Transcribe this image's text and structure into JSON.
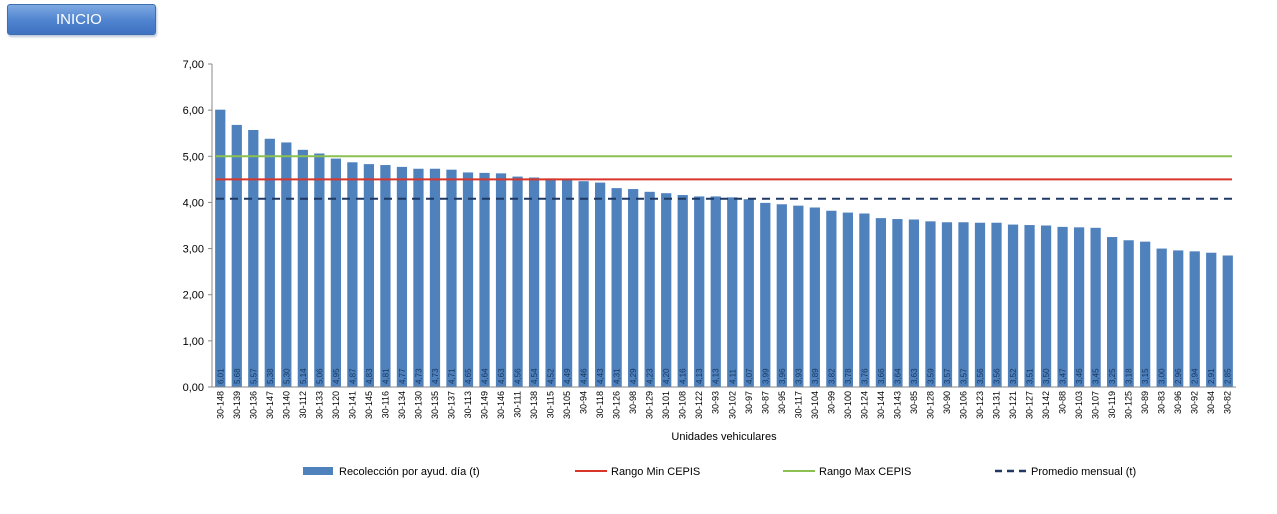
{
  "button": {
    "label": "INICIO"
  },
  "colors": {
    "bar": "#4f81bd",
    "min_line": "#d9362b",
    "max_line": "#8cc152",
    "avg_line": "#1f3864"
  },
  "chart_data": {
    "type": "bar",
    "xlabel": "Unidades vehiculares",
    "ylabel": "",
    "ylim": [
      0,
      7
    ],
    "yticks": [
      "0,00",
      "1,00",
      "2,00",
      "3,00",
      "4,00",
      "5,00",
      "6,00",
      "7,00"
    ],
    "grid": false,
    "legend_position": "bottom",
    "categories": [
      "30-148",
      "30-139",
      "30-136",
      "30-147",
      "30-140",
      "30-112",
      "30-133",
      "30-120",
      "30-141",
      "30-145",
      "30-116",
      "30-134",
      "30-130",
      "30-135",
      "30-137",
      "30-113",
      "30-149",
      "30-146",
      "30-111",
      "30-138",
      "30-115",
      "30-105",
      "30-94",
      "30-118",
      "30-126",
      "30-98",
      "30-129",
      "30-101",
      "30-108",
      "30-122",
      "30-93",
      "30-102",
      "30-97",
      "30-87",
      "30-95",
      "30-117",
      "30-104",
      "30-99",
      "30-100",
      "30-124",
      "30-144",
      "30-143",
      "30-85",
      "30-128",
      "30-90",
      "30-106",
      "30-123",
      "30-131",
      "30-121",
      "30-127",
      "30-142",
      "30-88",
      "30-103",
      "30-107",
      "30-119",
      "30-125",
      "30-89",
      "30-83",
      "30-96",
      "30-92",
      "30-84",
      "30-82"
    ],
    "series": [
      {
        "name": "Recolección por ayud. día (t)",
        "type": "bar",
        "values": [
          6.01,
          5.68,
          5.57,
          5.38,
          5.3,
          5.14,
          5.06,
          4.95,
          4.87,
          4.83,
          4.81,
          4.77,
          4.73,
          4.73,
          4.71,
          4.65,
          4.64,
          4.63,
          4.56,
          4.54,
          4.52,
          4.49,
          4.46,
          4.43,
          4.31,
          4.29,
          4.23,
          4.2,
          4.16,
          4.13,
          4.13,
          4.11,
          4.07,
          3.99,
          3.96,
          3.93,
          3.89,
          3.82,
          3.78,
          3.76,
          3.66,
          3.64,
          3.63,
          3.59,
          3.57,
          3.57,
          3.56,
          3.56,
          3.52,
          3.51,
          3.5,
          3.47,
          3.46,
          3.45,
          3.25,
          3.18,
          3.15,
          3.0,
          2.96,
          2.94,
          2.91,
          2.85
        ],
        "labels": [
          "6,01",
          "5,68",
          "5,57",
          "5,38",
          "5,30",
          "5,14",
          "5,06",
          "4,95",
          "4,87",
          "4,83",
          "4,81",
          "4,77",
          "4,73",
          "4,73",
          "4,71",
          "4,65",
          "4,64",
          "4,63",
          "4,56",
          "4,54",
          "4,52",
          "4,49",
          "4,46",
          "4,43",
          "4,31",
          "4,29",
          "4,23",
          "4,20",
          "4,16",
          "4,13",
          "4,13",
          "4,11",
          "4,07",
          "3,99",
          "3,96",
          "3,93",
          "3,89",
          "3,82",
          "3,78",
          "3,76",
          "3,66",
          "3,64",
          "3,63",
          "3,59",
          "3,57",
          "3,57",
          "3,56",
          "3,56",
          "3,52",
          "3,51",
          "3,50",
          "3,47",
          "3,46",
          "3,45",
          "3,25",
          "3,18",
          "3,15",
          "3,00",
          "2,96",
          "2,94",
          "2,91",
          "2,85"
        ]
      },
      {
        "name": "Rango Min CEPIS",
        "type": "line",
        "value": 4.5
      },
      {
        "name": "Rango Max CEPIS",
        "type": "line",
        "value": 5.0
      },
      {
        "name": "Promedio mensual (t)",
        "type": "dashed-line",
        "value": 4.08
      }
    ]
  }
}
